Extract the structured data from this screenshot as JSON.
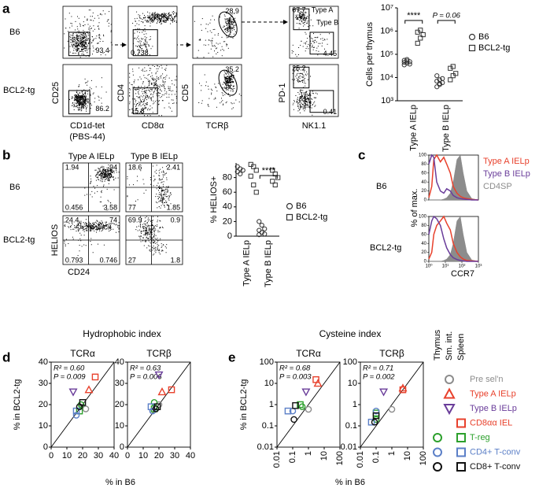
{
  "figure": {
    "panel_labels": [
      "a",
      "b",
      "c",
      "d",
      "e"
    ],
    "a_flow": {
      "rows": [
        "B6",
        "BCL2-tg"
      ],
      "y_labels": [
        "CD25",
        "CD4",
        "CD5",
        "PD-1"
      ],
      "x_labels": [
        "CD1d-tet",
        "CD8α",
        "TCRβ",
        "NK1.1"
      ],
      "x_note": "(PBS-44)",
      "gates": [
        [
          93.4,
          0.738,
          28.9,
          67.7,
          4.45
        ],
        [
          86.2,
          15.8,
          35.2,
          25.2,
          0.41
        ]
      ],
      "gate_names": [
        "Type A",
        "Type B"
      ]
    },
    "b_flow": {
      "rows": [
        "B6",
        "BCL2-tg"
      ],
      "columns": [
        "Type A IELp",
        "Type B IELp"
      ],
      "y_label": "HELIOS",
      "x_label": "CD24",
      "quadrants": [
        [
          [
            1.94,
            94,
            0.456,
            3.58
          ],
          [
            18.6,
            2.41,
            77,
            1.85
          ]
        ],
        [
          [
            24.4,
            74,
            0.793,
            0.746
          ],
          [
            69.9,
            0.9,
            27,
            1.8
          ]
        ]
      ]
    },
    "d": {
      "title": "Hydrophobic index",
      "ylabel": "% in BCL2-tg",
      "xlabel": "% in B6"
    },
    "e": {
      "title": "Cysteine index",
      "ylabel": "% in BCL2-tg",
      "xlabel": "% in B6"
    },
    "legend": {
      "columns": [
        "Thymus",
        "Sm. int.",
        "Spleen"
      ],
      "entries": [
        {
          "name": "Pre sel'n",
          "color": "#8c8c8c",
          "markers": [
            null,
            "circle",
            null
          ]
        },
        {
          "name": "Type A IELp",
          "color": "#e8412c",
          "markers": [
            null,
            "triangle-up",
            null
          ]
        },
        {
          "name": "Type B IELp",
          "color": "#6a3d9a",
          "markers": [
            null,
            "triangle-down",
            null
          ]
        },
        {
          "name": "CD8αα IEL",
          "color": "#e8412c",
          "markers": [
            null,
            null,
            "square"
          ]
        },
        {
          "name": "T-reg",
          "color": "#2ca02c",
          "markers": [
            "circle",
            null,
            "square"
          ]
        },
        {
          "name": "CD4+ T-conv",
          "color": "#5b7fc7",
          "markers": [
            "circle",
            null,
            "square"
          ]
        },
        {
          "name": "CD8+ T-conv",
          "color": "#111111",
          "markers": [
            "circle",
            null,
            "square"
          ]
        }
      ]
    }
  },
  "chart_data": [
    {
      "type": "strip",
      "ylabel": "Cells per thymus",
      "categories": [
        "Type A IELp",
        "Type B IELp"
      ],
      "log_scale": true,
      "ylim": [
        1000,
        10000000
      ],
      "yticks": [
        {
          "value": 1000,
          "label": "10³"
        },
        {
          "value": 10000,
          "label": "10⁴"
        },
        {
          "value": 100000,
          "label": "10⁵"
        },
        {
          "value": 1000000,
          "label": "10⁶"
        },
        {
          "value": 10000000,
          "label": "10⁷"
        }
      ],
      "series": [
        {
          "name": "B6",
          "marker": "circle",
          "color": "#333333",
          "values": [
            [
              35000,
              42000,
              48000,
              55000,
              60000,
              38000,
              45000,
              52000
            ],
            [
              4000,
              5000,
              6000,
              7000,
              8000,
              9000,
              12000,
              5500
            ]
          ]
        },
        {
          "name": "BCL2-tg",
          "marker": "square",
          "color": "#333333",
          "values": [
            [
              300000,
              500000,
              700000,
              900000,
              1100000
            ],
            [
              8000,
              12000,
              15000,
              25000,
              30000
            ]
          ]
        }
      ],
      "annotations": [
        {
          "text": "****",
          "category": 0
        },
        {
          "text": "P = 0.06",
          "category": 1
        }
      ]
    },
    {
      "type": "strip",
      "ylabel": "% HELIOS+",
      "categories": [
        "Type A IELp",
        "Type B IELp"
      ],
      "ylim": [
        0,
        100
      ],
      "yticks": [
        0,
        20,
        40,
        60,
        80
      ],
      "series": [
        {
          "name": "B6",
          "marker": "circle",
          "color": "#333333",
          "values": [
            [
              95,
              92,
              90,
              88,
              85
            ],
            [
              20,
              15,
              10,
              8,
              5,
              3,
              2
            ]
          ]
        },
        {
          "name": "BCL2-tg",
          "marker": "square",
          "color": "#333333",
          "values": [
            [
              98,
              95,
              90,
              82,
              70,
              60
            ],
            [
              90,
              85,
              80,
              75,
              70
            ]
          ]
        }
      ],
      "annotations": [
        {
          "text": "****",
          "category": 1
        }
      ]
    },
    {
      "type": "line",
      "row_label": "B6",
      "log_x": true,
      "x": [
        1,
        1.5,
        2,
        3,
        5,
        8,
        12,
        20,
        30,
        50,
        80,
        120,
        200,
        400,
        1000
      ],
      "xlim": [
        1,
        1000
      ],
      "ylim": [
        0,
        100
      ],
      "yticks": [
        0,
        20,
        40,
        60,
        80,
        100
      ],
      "series": [
        {
          "name": "Type A IELp",
          "color": "#e8412c",
          "values": [
            5,
            30,
            90,
            100,
            85,
            95,
            80,
            60,
            30,
            15,
            8,
            5,
            3,
            1,
            0
          ]
        },
        {
          "name": "Type B IELp",
          "color": "#6a3d9a",
          "values": [
            80,
            100,
            95,
            40,
            20,
            15,
            25,
            20,
            10,
            5,
            3,
            2,
            1,
            0,
            0
          ]
        },
        {
          "name": "CD4SP",
          "color": "#8c8c8c",
          "filled": true,
          "values": [
            0,
            0,
            0,
            0,
            0,
            2,
            5,
            15,
            40,
            90,
            100,
            60,
            20,
            3,
            0
          ]
        }
      ]
    },
    {
      "type": "line",
      "row_label": "BCL2-tg",
      "ylabel": "% of max.",
      "xlabel": "CCR7",
      "log_x": true,
      "x": [
        1,
        1.5,
        2,
        3,
        5,
        8,
        12,
        20,
        30,
        50,
        80,
        120,
        200,
        400,
        1000
      ],
      "xlim": [
        1,
        1000
      ],
      "xticks": [
        {
          "value": 1,
          "label": "10⁰"
        },
        {
          "value": 10,
          "label": "10¹"
        },
        {
          "value": 100,
          "label": "10²"
        },
        {
          "value": 1000,
          "label": "10³"
        }
      ],
      "ylim": [
        0,
        100
      ],
      "yticks": [
        0,
        20,
        40,
        60,
        80,
        100
      ],
      "series": [
        {
          "color": "#e8412c",
          "values": [
            5,
            20,
            60,
            80,
            90,
            100,
            85,
            70,
            40,
            20,
            10,
            5,
            2,
            1,
            0
          ]
        },
        {
          "color": "#6a3d9a",
          "values": [
            60,
            90,
            100,
            95,
            80,
            50,
            30,
            15,
            8,
            4,
            2,
            1,
            0,
            0,
            0
          ]
        },
        {
          "color": "#8c8c8c",
          "filled": true,
          "values": [
            0,
            0,
            0,
            0,
            0,
            2,
            5,
            15,
            40,
            90,
            100,
            60,
            20,
            3,
            0
          ]
        }
      ]
    },
    {
      "type": "scatter",
      "title": "TCRα",
      "xlim": [
        0,
        40
      ],
      "ylim": [
        0,
        40
      ],
      "xticks": [
        0,
        10,
        20,
        30,
        40
      ],
      "yticks": [
        0,
        10,
        20,
        30,
        40
      ],
      "diagonal": true,
      "annotations": [
        "R² = 0.60",
        "P = 0.009"
      ],
      "series": [
        {
          "color": "#8c8c8c",
          "marker": "circle",
          "x": [
            22
          ],
          "y": [
            18
          ]
        },
        {
          "color": "#e8412c",
          "marker": "triangle-up",
          "x": [
            24
          ],
          "y": [
            27
          ]
        },
        {
          "color": "#e8412c",
          "marker": "square",
          "x": [
            28
          ],
          "y": [
            33
          ]
        },
        {
          "color": "#6a3d9a",
          "marker": "triangle-down",
          "x": [
            14
          ],
          "y": [
            26
          ]
        },
        {
          "color": "#2ca02c",
          "marker": "circle",
          "x": [
            19
          ],
          "y": [
            20
          ]
        },
        {
          "color": "#2ca02c",
          "marker": "square",
          "x": [
            18
          ],
          "y": [
            17
          ]
        },
        {
          "color": "#5b7fc7",
          "marker": "circle",
          "x": [
            16
          ],
          "y": [
            15
          ]
        },
        {
          "color": "#5b7fc7",
          "marker": "square",
          "x": [
            16
          ],
          "y": [
            17
          ]
        },
        {
          "color": "#111111",
          "marker": "circle",
          "x": [
            18
          ],
          "y": [
            19
          ]
        },
        {
          "color": "#111111",
          "marker": "square",
          "x": [
            20
          ],
          "y": [
            21
          ]
        }
      ]
    },
    {
      "type": "scatter",
      "title": "TCRβ",
      "xlim": [
        0,
        40
      ],
      "ylim": [
        0,
        40
      ],
      "xticks": [
        0,
        10,
        20,
        30,
        40
      ],
      "yticks": [
        0,
        10,
        20,
        30,
        40
      ],
      "diagonal": true,
      "annotations": [
        "R² = 0.63",
        "P = 0.006"
      ],
      "series": [
        {
          "color": "#8c8c8c",
          "marker": "circle",
          "x": [
            20
          ],
          "y": [
            20
          ]
        },
        {
          "color": "#e8412c",
          "marker": "triangle-up",
          "x": [
            22
          ],
          "y": [
            26
          ]
        },
        {
          "color": "#e8412c",
          "marker": "square",
          "x": [
            28
          ],
          "y": [
            27
          ]
        },
        {
          "color": "#6a3d9a",
          "marker": "triangle-down",
          "x": [
            20
          ],
          "y": [
            34
          ]
        },
        {
          "color": "#2ca02c",
          "marker": "circle",
          "x": [
            17
          ],
          "y": [
            21
          ]
        },
        {
          "color": "#2ca02c",
          "marker": "square",
          "x": [
            17
          ],
          "y": [
            18
          ]
        },
        {
          "color": "#5b7fc7",
          "marker": "circle",
          "x": [
            16
          ],
          "y": [
            17
          ]
        },
        {
          "color": "#5b7fc7",
          "marker": "square",
          "x": [
            15
          ],
          "y": [
            19
          ]
        },
        {
          "color": "#111111",
          "marker": "circle",
          "x": [
            18
          ],
          "y": [
            18
          ]
        },
        {
          "color": "#111111",
          "marker": "square",
          "x": [
            19
          ],
          "y": [
            19
          ]
        }
      ]
    },
    {
      "type": "scatter",
      "title": "TCRα",
      "log_scale": true,
      "xlim": [
        0.01,
        100
      ],
      "ylim": [
        0.01,
        100
      ],
      "xticks": [
        0.01,
        0.1,
        1,
        10,
        100
      ],
      "yticks": [
        0.01,
        0.1,
        1,
        10,
        100
      ],
      "diagonal": true,
      "annotations": [
        "R² = 0.68",
        "P = 0.003"
      ],
      "series": [
        {
          "color": "#8c8c8c",
          "marker": "circle",
          "x": [
            1
          ],
          "y": [
            0.6
          ]
        },
        {
          "color": "#e8412c",
          "marker": "triangle-up",
          "x": [
            4
          ],
          "y": [
            10
          ]
        },
        {
          "color": "#e8412c",
          "marker": "square",
          "x": [
            3
          ],
          "y": [
            15
          ]
        },
        {
          "color": "#6a3d9a",
          "marker": "triangle-down",
          "x": [
            0.7
          ],
          "y": [
            4
          ]
        },
        {
          "color": "#2ca02c",
          "marker": "circle",
          "x": [
            0.4
          ],
          "y": [
            0.8
          ]
        },
        {
          "color": "#2ca02c",
          "marker": "square",
          "x": [
            0.3
          ],
          "y": [
            1
          ]
        },
        {
          "color": "#5b7fc7",
          "marker": "circle",
          "x": [
            0.1
          ],
          "y": [
            0.5
          ]
        },
        {
          "color": "#5b7fc7",
          "marker": "square",
          "x": [
            0.05
          ],
          "y": [
            0.5
          ]
        },
        {
          "color": "#111111",
          "marker": "circle",
          "x": [
            0.12
          ],
          "y": [
            0.2
          ]
        },
        {
          "color": "#111111",
          "marker": "square",
          "x": [
            0.15
          ],
          "y": [
            0.9
          ]
        }
      ]
    },
    {
      "type": "scatter",
      "title": "TCRβ",
      "log_scale": true,
      "xlim": [
        0.01,
        100
      ],
      "ylim": [
        0.01,
        100
      ],
      "xticks": [
        0.01,
        0.1,
        1,
        10,
        100
      ],
      "yticks": [
        0.01,
        0.1,
        1,
        10,
        100
      ],
      "diagonal": true,
      "annotations": [
        "R² = 0.71",
        "P = 0.002"
      ],
      "series": [
        {
          "color": "#8c8c8c",
          "marker": "circle",
          "x": [
            1
          ],
          "y": [
            0.6
          ]
        },
        {
          "color": "#e8412c",
          "marker": "triangle-up",
          "x": [
            5
          ],
          "y": [
            6
          ]
        },
        {
          "color": "#e8412c",
          "marker": "square",
          "x": [
            5
          ],
          "y": [
            5
          ]
        },
        {
          "color": "#6a3d9a",
          "marker": "triangle-down",
          "x": [
            0.3
          ],
          "y": [
            4
          ]
        },
        {
          "color": "#2ca02c",
          "marker": "circle",
          "x": [
            0.1
          ],
          "y": [
            0.2
          ]
        },
        {
          "color": "#2ca02c",
          "marker": "square",
          "x": [
            0.1
          ],
          "y": [
            0.4
          ]
        },
        {
          "color": "#5b7fc7",
          "marker": "circle",
          "x": [
            0.1
          ],
          "y": [
            0.5
          ]
        },
        {
          "color": "#5b7fc7",
          "marker": "square",
          "x": [
            0.05
          ],
          "y": [
            0.15
          ]
        },
        {
          "color": "#111111",
          "marker": "circle",
          "x": [
            0.08
          ],
          "y": [
            0.15
          ]
        },
        {
          "color": "#111111",
          "marker": "square",
          "x": [
            0.1
          ],
          "y": [
            0.3
          ]
        }
      ]
    }
  ]
}
